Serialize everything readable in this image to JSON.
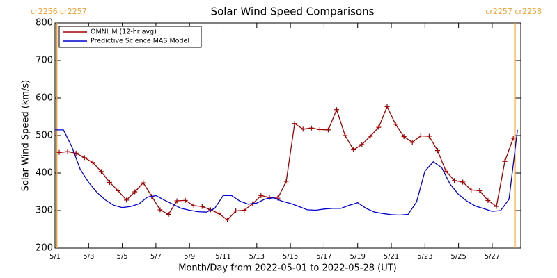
{
  "chart_data": {
    "type": "line",
    "title": "Solar Wind Speed Comparisons",
    "x_label": "Month/Day from 2022-05-01 to 2022-05-28 (UT)",
    "y_label": "Solar Wind Speed (km/s)",
    "xlim": [
      0,
      27.7
    ],
    "ylim": [
      200,
      800
    ],
    "xticks": [
      {
        "value": 0,
        "label": "5/1"
      },
      {
        "value": 2,
        "label": "5/3"
      },
      {
        "value": 4,
        "label": "5/5"
      },
      {
        "value": 6,
        "label": "5/7"
      },
      {
        "value": 8,
        "label": "5/9"
      },
      {
        "value": 10,
        "label": "5/11"
      },
      {
        "value": 12,
        "label": "5/13"
      },
      {
        "value": 14,
        "label": "5/15"
      },
      {
        "value": 16,
        "label": "5/17"
      },
      {
        "value": 18,
        "label": "5/19"
      },
      {
        "value": 20,
        "label": "5/21"
      },
      {
        "value": 22,
        "label": "5/23"
      },
      {
        "value": 24,
        "label": "5/25"
      },
      {
        "value": 26,
        "label": "5/27"
      }
    ],
    "yticks": [
      200,
      300,
      400,
      500,
      600,
      700,
      800
    ],
    "carrington_lines": [
      0.1,
      27.35
    ],
    "carrington_color": "#f0a030",
    "carrington_labels": [
      "cr2256 cr2257",
      "cr2257 cr2258"
    ],
    "legend": "upper left",
    "series": [
      {
        "name": "OMNI_M (12-hr avg)",
        "color": "#a00000",
        "marker": "+",
        "x": [
          0.25,
          0.75,
          1.25,
          1.75,
          2.25,
          2.75,
          3.25,
          3.75,
          4.25,
          4.75,
          5.25,
          5.75,
          6.25,
          6.75,
          7.25,
          7.75,
          8.25,
          8.75,
          9.25,
          9.75,
          10.25,
          10.75,
          11.25,
          11.75,
          12.25,
          12.75,
          13.25,
          13.75,
          14.25,
          14.75,
          15.25,
          15.75,
          16.25,
          16.75,
          17.25,
          17.75,
          18.25,
          18.75,
          19.25,
          19.75,
          20.25,
          20.75,
          21.25,
          21.75,
          22.25,
          22.75,
          23.25,
          23.75,
          24.25,
          24.75,
          25.25,
          25.75,
          26.25,
          26.75,
          27.25
        ],
        "values": [
          455,
          457,
          453,
          441,
          428,
          404,
          375,
          353,
          328,
          350,
          374,
          338,
          302,
          290,
          326,
          327,
          313,
          311,
          302,
          292,
          275,
          299,
          301,
          318,
          340,
          335,
          333,
          378,
          532,
          517,
          520,
          516,
          515,
          569,
          500,
          462,
          476,
          498,
          522,
          577,
          530,
          497,
          482,
          499,
          498,
          460,
          405,
          380,
          376,
          355,
          353,
          327,
          311,
          431,
          493
        ]
      },
      {
        "name": "Predictive Science MAS Model",
        "color": "#0000d0",
        "marker": "none",
        "x": [
          0,
          0.5,
          1,
          1.5,
          2,
          2.5,
          3,
          3.5,
          4,
          4.5,
          5,
          5.5,
          6,
          6.5,
          7,
          7.5,
          8,
          8.5,
          9,
          9.5,
          10,
          10.5,
          11,
          11.5,
          12,
          12.5,
          13,
          13.5,
          14,
          14.5,
          15,
          15.5,
          16,
          16.5,
          17,
          17.5,
          18,
          18.5,
          19,
          19.5,
          20,
          20.5,
          21,
          21.5,
          22,
          22.5,
          23,
          23.5,
          24,
          24.5,
          25,
          25.5,
          26,
          26.5,
          27,
          27.5
        ],
        "values": [
          515,
          515,
          470,
          410,
          375,
          348,
          328,
          314,
          308,
          311,
          318,
          336,
          340,
          328,
          317,
          306,
          301,
          297,
          296,
          306,
          340,
          340,
          325,
          317,
          320,
          331,
          334,
          325,
          319,
          311,
          302,
          301,
          304,
          306,
          306,
          314,
          321,
          306,
          296,
          292,
          289,
          288,
          290,
          323,
          405,
          430,
          414,
          370,
          343,
          325,
          312,
          305,
          298,
          300,
          330,
          515
        ]
      }
    ]
  }
}
